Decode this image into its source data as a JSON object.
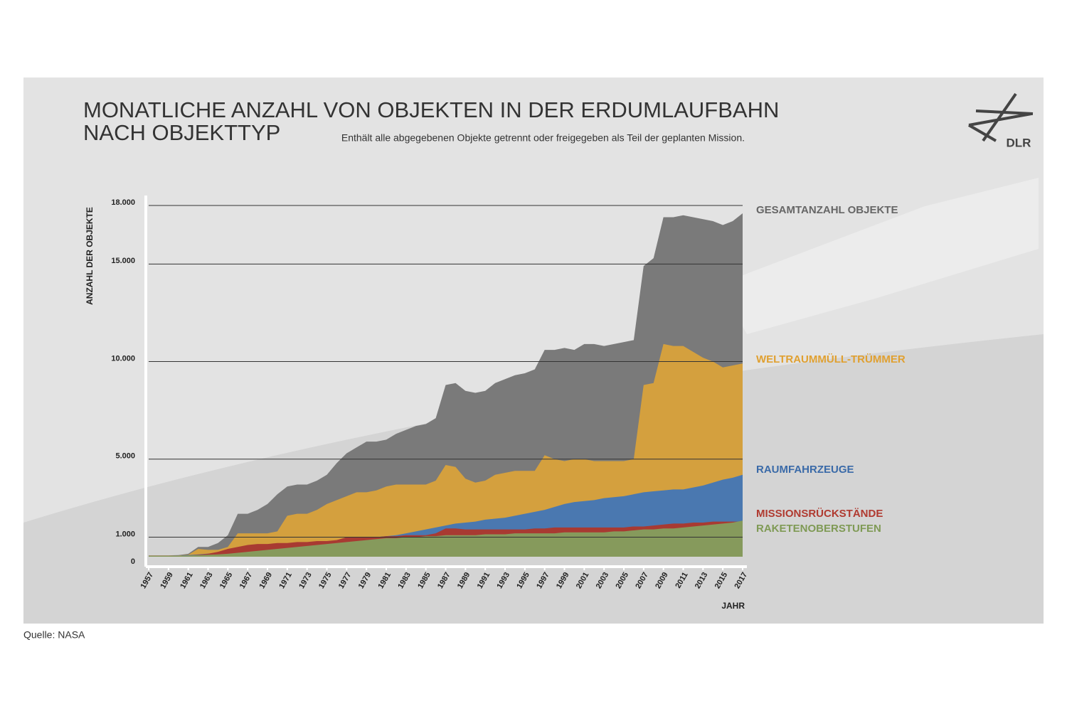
{
  "chart_data": {
    "type": "area",
    "title": [
      "MONATLICHE ANZAHL VON OBJEKTEN IN DER ERDUMLAUFBAHN",
      "NACH OBJEKTTYP"
    ],
    "subtitle": "Enthält alle abgegebenen Objekte getrennt oder freigegeben als Teil der geplanten Mission.",
    "y_label": "ANZAHL DER OBJEKTE",
    "x_label": "JAHR",
    "source": "Quelle: NASA",
    "logo": "DLR",
    "stacked": false,
    "x": [
      1957,
      1958,
      1959,
      1960,
      1961,
      1962,
      1963,
      1964,
      1965,
      1966,
      1967,
      1968,
      1969,
      1970,
      1971,
      1972,
      1973,
      1974,
      1975,
      1976,
      1977,
      1978,
      1979,
      1980,
      1981,
      1982,
      1983,
      1984,
      1985,
      1986,
      1987,
      1988,
      1989,
      1990,
      1991,
      1992,
      1993,
      1994,
      1995,
      1996,
      1997,
      1998,
      1999,
      2000,
      2001,
      2002,
      2003,
      2004,
      2005,
      2006,
      2007,
      2008,
      2009,
      2010,
      2011,
      2012,
      2013,
      2014,
      2015,
      2016,
      2017
    ],
    "series": [
      {
        "name": "GESAMTANZAHL OBJEKTE",
        "color": "#7a7a7a",
        "label_color": "#666666",
        "values": [
          70,
          70,
          70,
          80,
          150,
          500,
          500,
          700,
          1100,
          2200,
          2200,
          2400,
          2700,
          3200,
          3600,
          3700,
          3700,
          3900,
          4200,
          4800,
          5300,
          5600,
          5900,
          5900,
          6000,
          6300,
          6500,
          6700,
          6800,
          7100,
          8800,
          8900,
          8500,
          8400,
          8500,
          8900,
          9100,
          9300,
          9400,
          9600,
          10600,
          10600,
          10700,
          10600,
          10900,
          10900,
          10800,
          10900,
          11000,
          11100,
          14900,
          15300,
          17400,
          17400,
          17500,
          17400,
          17300,
          17200,
          17000,
          17200,
          17600
        ]
      },
      {
        "name": "WELTRAUMMÜLL-TRÜMMER",
        "color": "#d4a03e",
        "label_color": "#e0a030",
        "values": [
          50,
          50,
          50,
          60,
          100,
          400,
          350,
          350,
          500,
          1200,
          1200,
          1200,
          1200,
          1300,
          2100,
          2200,
          2200,
          2400,
          2700,
          2900,
          3100,
          3300,
          3300,
          3400,
          3600,
          3700,
          3700,
          3700,
          3700,
          3900,
          4700,
          4600,
          4000,
          3800,
          3900,
          4200,
          4300,
          4400,
          4400,
          4400,
          5200,
          5000,
          4900,
          5000,
          5000,
          4900,
          4900,
          4900,
          4900,
          5000,
          8800,
          8900,
          10900,
          10800,
          10800,
          10500,
          10200,
          10000,
          9700,
          9800,
          9900
        ]
      },
      {
        "name": "RAUMFAHRZEUGE",
        "color": "#4a78b0",
        "label_color": "#3a6aa8",
        "values": [
          10,
          20,
          30,
          50,
          80,
          120,
          160,
          200,
          250,
          300,
          350,
          400,
          450,
          500,
          550,
          600,
          650,
          700,
          750,
          800,
          850,
          900,
          950,
          1000,
          1050,
          1100,
          1200,
          1300,
          1400,
          1500,
          1600,
          1700,
          1750,
          1800,
          1900,
          1950,
          2000,
          2100,
          2200,
          2300,
          2400,
          2550,
          2700,
          2800,
          2850,
          2900,
          3000,
          3050,
          3100,
          3200,
          3300,
          3350,
          3400,
          3450,
          3450,
          3550,
          3650,
          3800,
          3950,
          4050,
          4200
        ]
      },
      {
        "name": "MISSIONSRÜCKSTÄNDE",
        "color": "#a83a32",
        "label_color": "#b03a30",
        "values": [
          10,
          10,
          20,
          30,
          50,
          100,
          150,
          250,
          400,
          500,
          600,
          650,
          650,
          700,
          700,
          750,
          750,
          800,
          800,
          850,
          1000,
          1000,
          1000,
          1000,
          1050,
          1050,
          1100,
          1100,
          1100,
          1200,
          1450,
          1450,
          1400,
          1400,
          1400,
          1400,
          1400,
          1400,
          1400,
          1450,
          1450,
          1500,
          1500,
          1500,
          1500,
          1500,
          1500,
          1500,
          1500,
          1550,
          1550,
          1600,
          1650,
          1700,
          1700,
          1750,
          1750,
          1800,
          1800,
          1800,
          1800
        ]
      },
      {
        "name": "RAKETENOBERSTUFEN",
        "color": "#869a5c",
        "label_color": "#7f9a55",
        "values": [
          40,
          40,
          40,
          50,
          60,
          80,
          100,
          120,
          150,
          200,
          250,
          300,
          350,
          400,
          450,
          500,
          550,
          600,
          650,
          700,
          750,
          800,
          850,
          900,
          950,
          950,
          1000,
          1000,
          1050,
          1050,
          1100,
          1100,
          1100,
          1100,
          1150,
          1150,
          1150,
          1200,
          1200,
          1200,
          1200,
          1200,
          1250,
          1250,
          1250,
          1250,
          1250,
          1300,
          1300,
          1350,
          1400,
          1400,
          1450,
          1450,
          1500,
          1550,
          1600,
          1650,
          1700,
          1750,
          1850
        ]
      }
    ],
    "xlim": [
      1957,
      2017
    ],
    "xticks": [
      1957,
      1959,
      1961,
      1963,
      1965,
      1967,
      1969,
      1971,
      1973,
      1975,
      1977,
      1979,
      1981,
      1983,
      1985,
      1987,
      1989,
      1991,
      1993,
      1995,
      1997,
      1999,
      2001,
      2003,
      2005,
      2007,
      2009,
      2011,
      2013,
      2015,
      2017
    ],
    "ylim": [
      0,
      18000
    ],
    "yticks": [
      0,
      {
        "value": 1000,
        "label": "1.000"
      },
      {
        "value": 5000,
        "label": "5.000"
      },
      {
        "value": 10000,
        "label": "10.000"
      },
      {
        "value": 15000,
        "label": "15.000"
      },
      {
        "value": 18000,
        "label": "18.000"
      }
    ],
    "grid": true
  }
}
